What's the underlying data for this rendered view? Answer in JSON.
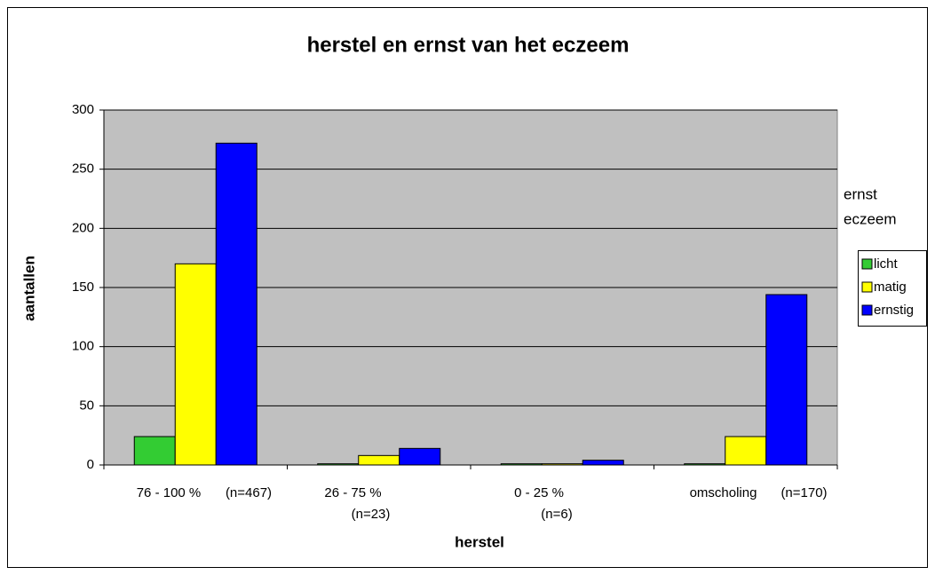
{
  "chart_data": {
    "type": "bar",
    "title": "herstel en ernst van het eczeem",
    "x_label": "herstel",
    "y_label": "aantallen",
    "legend_title": [
      "ernst",
      "eczeem"
    ],
    "categories": [
      [
        "76 - 100 %",
        "(n=467)"
      ],
      [
        "26 - 75 %",
        "(n=23)"
      ],
      [
        "0 - 25 %",
        "(n=6)"
      ],
      [
        "omscholing",
        "(n=170)"
      ]
    ],
    "series": [
      {
        "name": "licht",
        "color": "#33cc33",
        "values": [
          24,
          1,
          1,
          1
        ]
      },
      {
        "name": "matig",
        "color": "#ffff00",
        "values": [
          170,
          8,
          1,
          24
        ]
      },
      {
        "name": "ernstig",
        "color": "#0000ff",
        "values": [
          272,
          14,
          4,
          144
        ]
      }
    ],
    "ylim": [
      0,
      300
    ],
    "yticks": [
      0,
      50,
      100,
      150,
      200,
      250,
      300
    ],
    "grid": true,
    "legend": "right"
  }
}
